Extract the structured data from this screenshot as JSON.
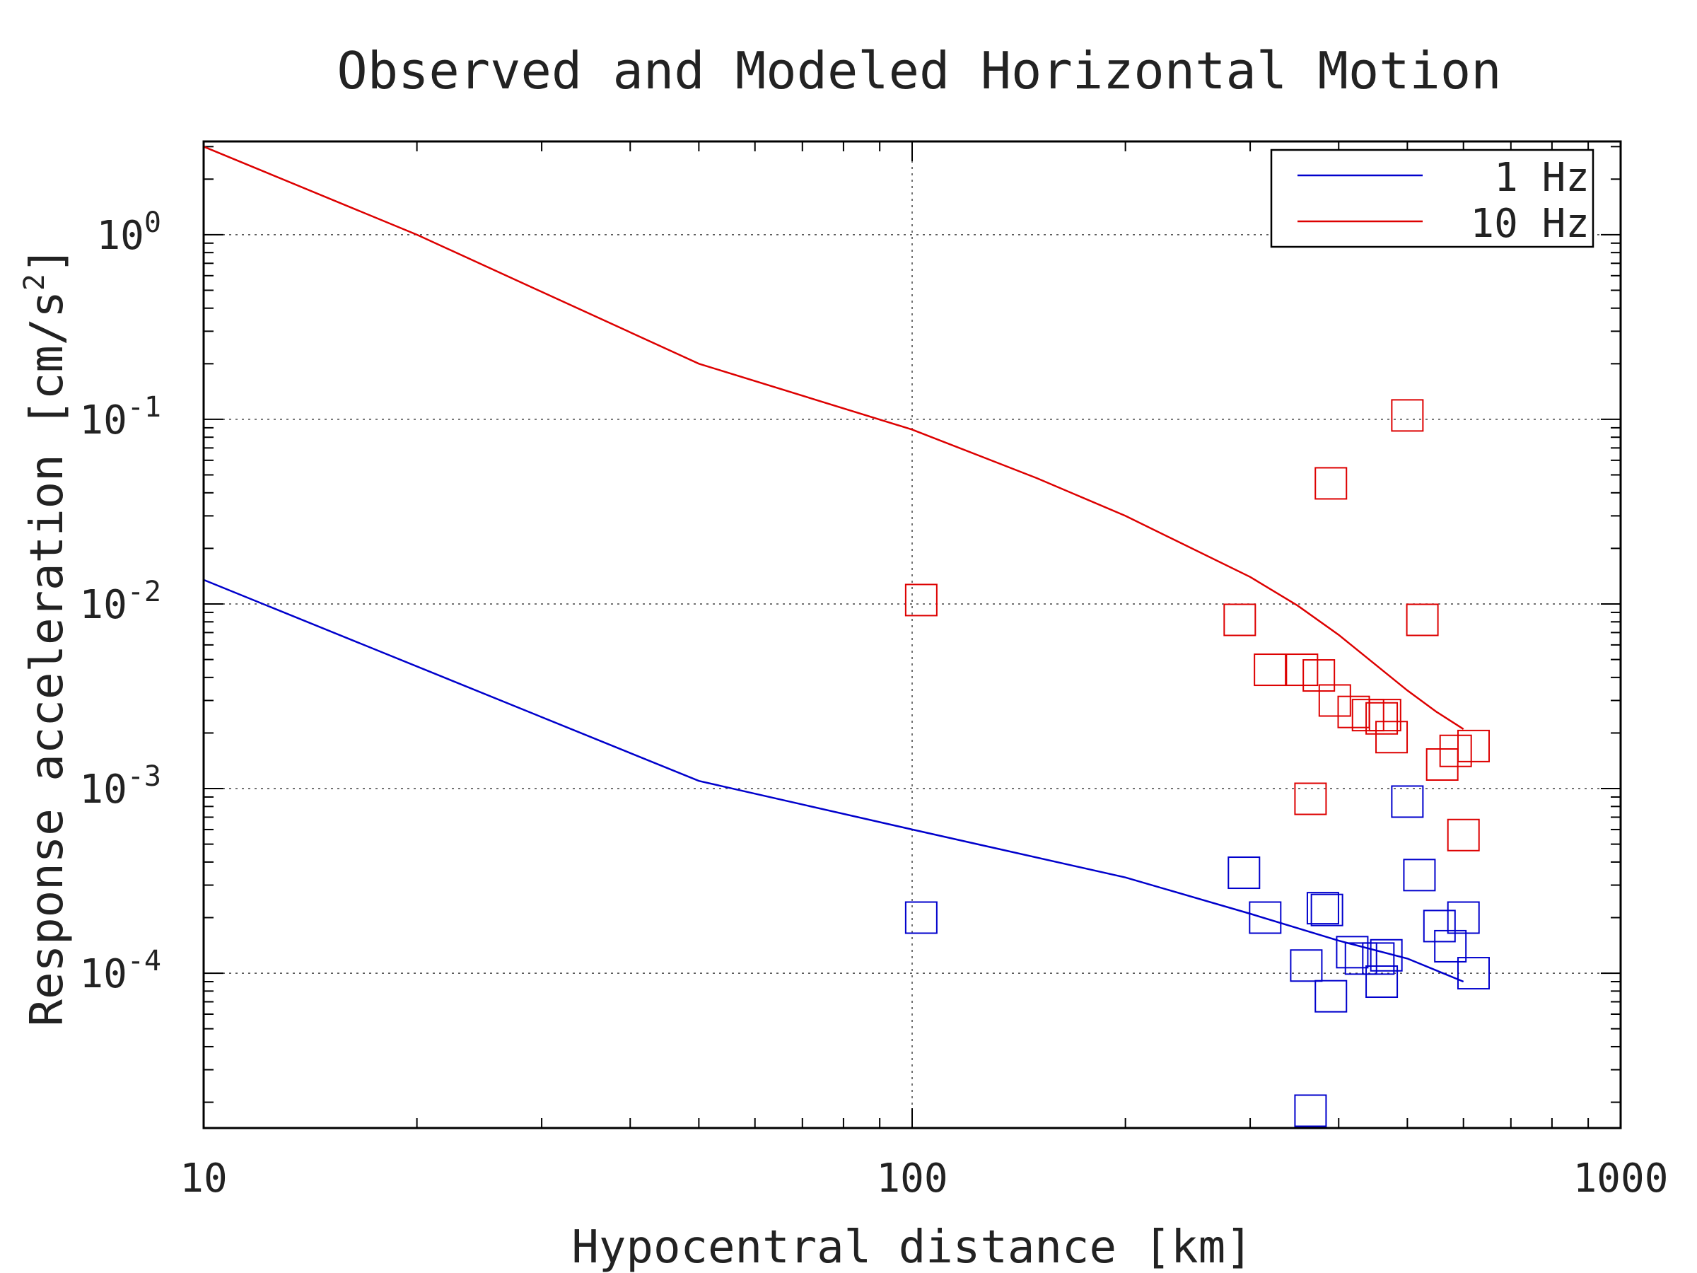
{
  "chart_data": {
    "type": "scatter",
    "title": "Observed and Modeled Horizontal Motion",
    "xlabel": "Hypocentral distance [km]",
    "ylabel": "Response acceleration [cm/s",
    "ylabel_sup": "2",
    "ylabel_end": "]",
    "x_scale": "log",
    "y_scale": "log",
    "xlim": [
      10,
      1000
    ],
    "ylim": [
      1.45e-05,
      3.2
    ],
    "x_ticks": [
      {
        "value": 10,
        "label": "10"
      },
      {
        "value": 100,
        "label": "100"
      },
      {
        "value": 1000,
        "label": "1000"
      }
    ],
    "y_ticks": [
      {
        "value": 1,
        "base": "10",
        "exp": "0"
      },
      {
        "value": 0.1,
        "base": "10",
        "exp": "-1"
      },
      {
        "value": 0.01,
        "base": "10",
        "exp": "-2"
      },
      {
        "value": 0.001,
        "base": "10",
        "exp": "-3"
      },
      {
        "value": 0.0001,
        "base": "10",
        "exp": "-4"
      }
    ],
    "grid": true,
    "legend": {
      "position": "top-right",
      "entries": [
        {
          "label": "1 Hz",
          "color": "#0000cc"
        },
        {
          "label": "10 Hz",
          "color": "#dd0000"
        }
      ]
    },
    "model_lines": [
      {
        "name": "1 Hz",
        "color": "#0000cc",
        "points": [
          [
            10,
            0.0135
          ],
          [
            50,
            0.0011
          ],
          [
            100,
            0.0006
          ],
          [
            200,
            0.00033
          ],
          [
            300,
            0.00021
          ],
          [
            400,
            0.00015
          ],
          [
            500,
            0.00012
          ],
          [
            600,
            9e-05
          ]
        ]
      },
      {
        "name": "10 Hz",
        "color": "#dd0000",
        "points": [
          [
            10,
            3.0
          ],
          [
            20,
            1.0
          ],
          [
            50,
            0.2
          ],
          [
            100,
            0.088
          ],
          [
            150,
            0.048
          ],
          [
            200,
            0.03
          ],
          [
            300,
            0.014
          ],
          [
            350,
            0.0098
          ],
          [
            400,
            0.0068
          ],
          [
            500,
            0.0034
          ],
          [
            550,
            0.0026
          ],
          [
            600,
            0.0021
          ]
        ]
      }
    ],
    "observed": [
      {
        "name": "1 Hz",
        "color": "#0000cc",
        "points": [
          [
            103,
            0.0002
          ],
          [
            294,
            0.00035
          ],
          [
            315,
            0.0002
          ],
          [
            360,
            0.00011
          ],
          [
            365,
            1.8e-05
          ],
          [
            380,
            0.000225
          ],
          [
            385,
            0.00022
          ],
          [
            390,
            7.5e-05
          ],
          [
            418,
            0.00013
          ],
          [
            430,
            0.00012
          ],
          [
            455,
            0.00012
          ],
          [
            460,
            9e-05
          ],
          [
            467,
            0.000125
          ],
          [
            500,
            0.00085
          ],
          [
            520,
            0.00034
          ],
          [
            555,
            0.00018
          ],
          [
            575,
            0.00014
          ],
          [
            600,
            0.0002
          ],
          [
            620,
            0.0001
          ]
        ]
      },
      {
        "name": "10 Hz",
        "color": "#dd0000",
        "points": [
          [
            103,
            0.0105
          ],
          [
            290,
            0.0082
          ],
          [
            320,
            0.0044
          ],
          [
            355,
            0.0044
          ],
          [
            365,
            0.00088
          ],
          [
            375,
            0.0041
          ],
          [
            390,
            0.045
          ],
          [
            395,
            0.003
          ],
          [
            420,
            0.0026
          ],
          [
            440,
            0.0025
          ],
          [
            460,
            0.0024
          ],
          [
            465,
            0.0025
          ],
          [
            475,
            0.0019
          ],
          [
            500,
            0.105
          ],
          [
            525,
            0.0082
          ],
          [
            560,
            0.00135
          ],
          [
            585,
            0.0016
          ],
          [
            600,
            0.00056
          ],
          [
            620,
            0.0017
          ]
        ]
      }
    ]
  }
}
